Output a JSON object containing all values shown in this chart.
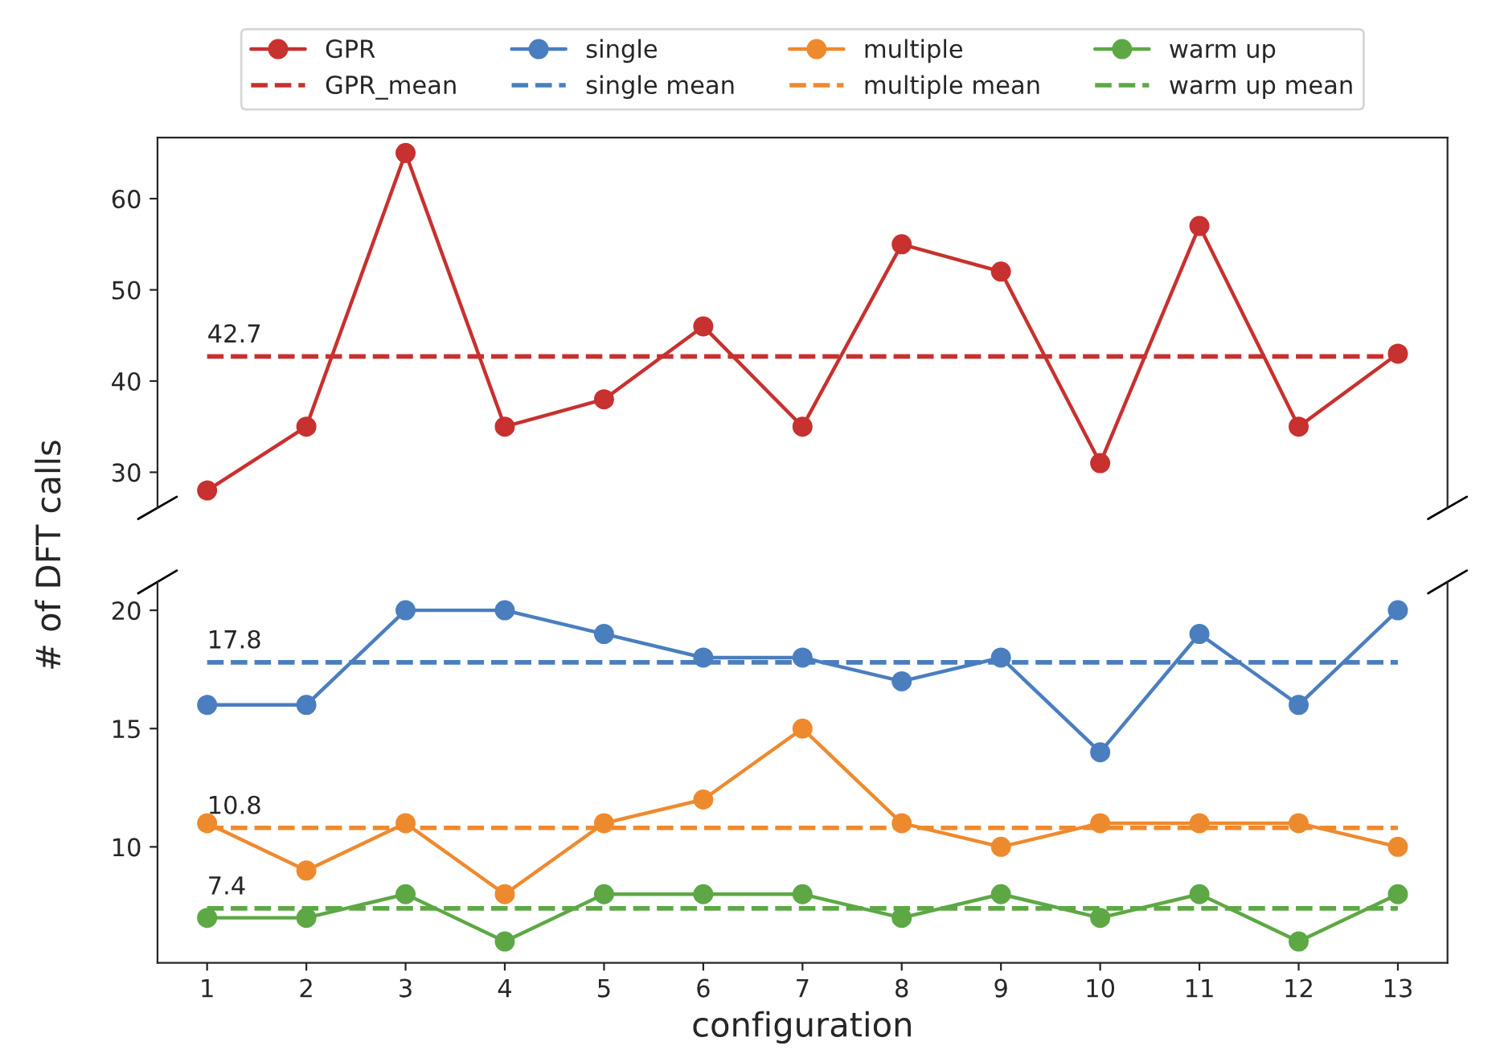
{
  "chart_data": [
    {
      "type": "line",
      "categories": [
        "1",
        "2",
        "3",
        "4",
        "5",
        "6",
        "7",
        "8",
        "9",
        "10",
        "11",
        "12",
        "13"
      ],
      "ylim": [
        26.1,
        66.7
      ],
      "yticks": [
        30,
        40,
        50,
        60
      ],
      "tick_labels": "y",
      "grid": false,
      "legend": "top",
      "marker": "circle",
      "series": [
        {
          "name": "GPR",
          "color": "#c7312f",
          "values": [
            28,
            35,
            65,
            35,
            38,
            46,
            35,
            55,
            52,
            31,
            57,
            35,
            43
          ]
        },
        {
          "name": "GPR_mean",
          "color": "#c7312f",
          "line_style": "dashed",
          "marker": "none",
          "values": [
            42.7,
            42.7,
            42.7,
            42.7,
            42.7,
            42.7,
            42.7,
            42.7,
            42.7,
            42.7,
            42.7,
            42.7,
            42.7
          ]
        }
      ],
      "annotations": [
        {
          "text": "42.7",
          "x": "1",
          "y": 42.7
        }
      ]
    },
    {
      "type": "line",
      "categories": [
        "1",
        "2",
        "3",
        "4",
        "5",
        "6",
        "7",
        "8",
        "9",
        "10",
        "11",
        "12",
        "13"
      ],
      "ylim": [
        5.1,
        21.2
      ],
      "yticks": [
        10,
        15,
        20
      ],
      "grid": false,
      "legend": "top",
      "marker": "circle",
      "xlabel": "configuration",
      "ylabel": "# of DFT calls",
      "series": [
        {
          "name": "single",
          "color": "#4a7ebf",
          "values": [
            16,
            16,
            20,
            20,
            19,
            18,
            18,
            17,
            18,
            14,
            19,
            16,
            20
          ]
        },
        {
          "name": "single mean",
          "color": "#4a7ebf",
          "line_style": "dashed",
          "marker": "none",
          "values": [
            17.8,
            17.8,
            17.8,
            17.8,
            17.8,
            17.8,
            17.8,
            17.8,
            17.8,
            17.8,
            17.8,
            17.8,
            17.8
          ]
        },
        {
          "name": "multiple",
          "color": "#ee8a2e",
          "values": [
            11,
            9,
            11,
            8,
            11,
            12,
            15,
            11,
            10,
            11,
            11,
            11,
            10
          ]
        },
        {
          "name": "multiple mean",
          "color": "#ee8a2e",
          "line_style": "dashed",
          "marker": "none",
          "values": [
            10.8,
            10.8,
            10.8,
            10.8,
            10.8,
            10.8,
            10.8,
            10.8,
            10.8,
            10.8,
            10.8,
            10.8,
            10.8
          ]
        },
        {
          "name": "warm up",
          "color": "#5da845",
          "values": [
            7,
            7,
            8,
            6,
            8,
            8,
            8,
            7,
            8,
            7,
            8,
            6,
            8
          ]
        },
        {
          "name": "warm up mean",
          "color": "#5da845",
          "line_style": "dashed",
          "marker": "none",
          "values": [
            7.4,
            7.4,
            7.4,
            7.4,
            7.4,
            7.4,
            7.4,
            7.4,
            7.4,
            7.4,
            7.4,
            7.4,
            7.4
          ]
        }
      ],
      "annotations": [
        {
          "text": "17.8",
          "x": "1",
          "y": 17.8
        },
        {
          "text": "10.8",
          "x": "1",
          "y": 10.8
        },
        {
          "text": "7.4",
          "x": "1",
          "y": 7.4
        }
      ]
    }
  ]
}
